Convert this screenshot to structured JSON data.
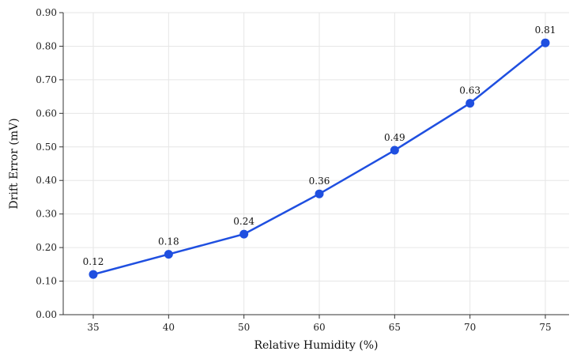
{
  "chart_data": {
    "type": "line",
    "title": "",
    "xlabel": "Relative Humidity (%)",
    "ylabel": "Drift Error (mV)",
    "categories": [
      "35",
      "40",
      "50",
      "60",
      "65",
      "70",
      "75"
    ],
    "series": [
      {
        "values": [
          0.12,
          0.18,
          0.24,
          0.36,
          0.49,
          0.63,
          0.81
        ],
        "data_labels": [
          "0.12",
          "0.18",
          "0.24",
          "0.36",
          "0.49",
          "0.63",
          "0.81"
        ],
        "color": "#1f4fe0"
      }
    ],
    "ylim": [
      0,
      0.9
    ],
    "yticks": [
      0,
      0.1,
      0.2,
      0.3,
      0.4,
      0.5,
      0.6,
      0.7,
      0.8,
      0.9
    ],
    "ytick_labels": [
      "0.00",
      "0.10",
      "0.20",
      "0.30",
      "0.40",
      "0.50",
      "0.60",
      "0.70",
      "0.80",
      "0.90"
    ],
    "grid": true,
    "legend": "none"
  }
}
